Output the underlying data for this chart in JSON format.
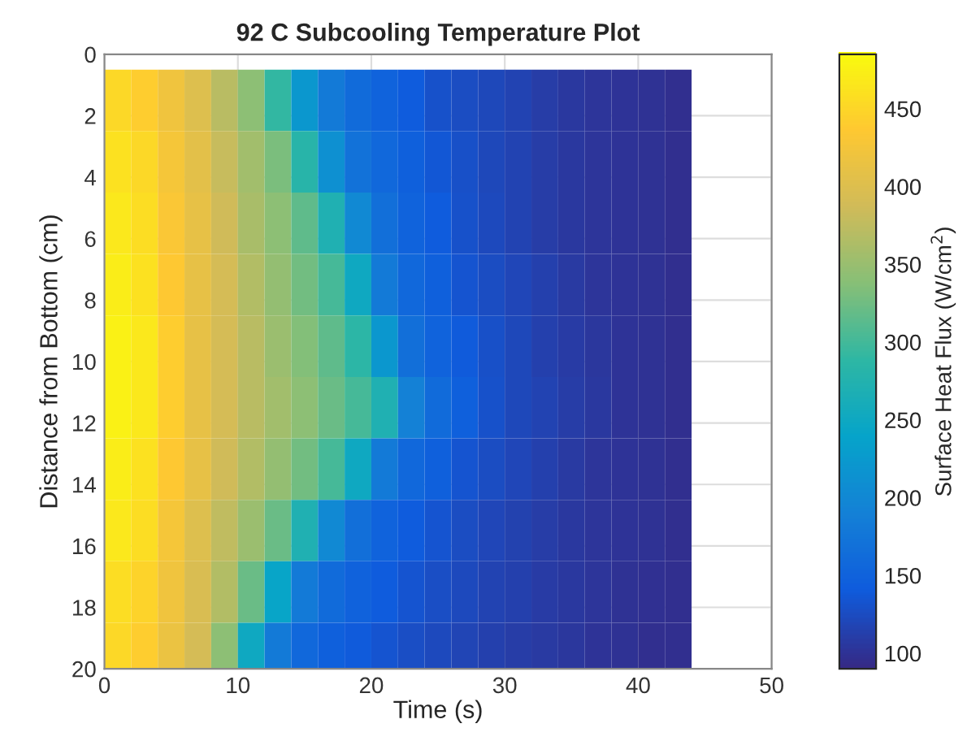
{
  "chart_data": {
    "type": "heatmap",
    "title": "92 C Subcooling Temperature Plot",
    "xlabel": "Time (s)",
    "ylabel": "Distance from Bottom (cm)",
    "clabel": "Surface Heat Flux (W/cm$^{2}$)",
    "x": [
      1,
      3,
      5,
      7,
      9,
      11,
      13,
      15,
      17,
      19,
      21,
      23,
      25,
      27,
      29,
      31,
      33,
      35,
      37,
      39,
      41,
      43
    ],
    "y": [
      1.5,
      3.5,
      5.5,
      7.5,
      9.5,
      11.5,
      13.5,
      15.5,
      17.5,
      19.5
    ],
    "cells": [
      [
        450,
        440,
        420,
        400,
        370,
        340,
        290,
        220,
        180,
        160,
        150,
        140,
        130,
        125,
        120,
        115,
        110,
        105,
        102,
        100,
        98,
        96
      ],
      [
        460,
        450,
        425,
        405,
        380,
        355,
        330,
        280,
        210,
        170,
        155,
        145,
        135,
        128,
        120,
        115,
        110,
        105,
        102,
        100,
        98,
        96
      ],
      [
        465,
        455,
        430,
        410,
        385,
        360,
        340,
        315,
        270,
        200,
        165,
        150,
        140,
        130,
        122,
        116,
        110,
        105,
        102,
        100,
        98,
        96
      ],
      [
        470,
        460,
        435,
        410,
        390,
        365,
        345,
        325,
        300,
        250,
        180,
        155,
        145,
        133,
        125,
        118,
        112,
        106,
        102,
        100,
        98,
        96
      ],
      [
        475,
        465,
        440,
        410,
        390,
        370,
        350,
        335,
        315,
        285,
        220,
        165,
        150,
        138,
        128,
        120,
        113,
        107,
        103,
        100,
        98,
        96
      ],
      [
        475,
        465,
        440,
        410,
        390,
        370,
        355,
        340,
        320,
        300,
        270,
        190,
        160,
        145,
        130,
        120,
        115,
        110,
        105,
        100,
        98,
        95
      ],
      [
        470,
        460,
        435,
        410,
        385,
        365,
        345,
        325,
        300,
        250,
        180,
        155,
        145,
        133,
        125,
        118,
        112,
        106,
        102,
        100,
        98,
        96
      ],
      [
        465,
        455,
        425,
        400,
        375,
        350,
        320,
        270,
        200,
        165,
        150,
        140,
        132,
        125,
        118,
        114,
        110,
        105,
        102,
        100,
        98,
        96
      ],
      [
        455,
        445,
        420,
        395,
        365,
        320,
        240,
        180,
        160,
        148,
        140,
        133,
        127,
        121,
        116,
        112,
        108,
        104,
        101,
        99,
        97,
        95
      ],
      [
        450,
        440,
        415,
        390,
        340,
        250,
        180,
        155,
        145,
        138,
        132,
        127,
        122,
        117,
        113,
        110,
        106,
        103,
        100,
        98,
        96,
        95
      ]
    ],
    "xlim": [
      0,
      50
    ],
    "xticks": [
      0,
      10,
      20,
      30,
      40,
      50
    ],
    "ylim": [
      20,
      0
    ],
    "yticks": [
      0,
      2,
      4,
      6,
      8,
      10,
      12,
      14,
      16,
      18,
      20
    ],
    "clim": [
      90,
      485
    ],
    "cticks": [
      100,
      150,
      200,
      250,
      300,
      350,
      400,
      450
    ],
    "grid": true
  }
}
